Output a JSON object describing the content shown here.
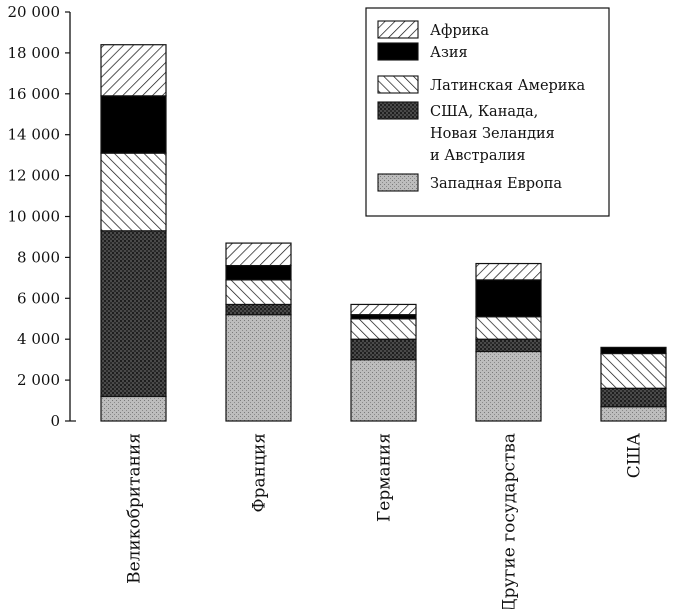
{
  "chart_data": {
    "type": "bar",
    "stacked": true,
    "title": "",
    "xlabel": "",
    "ylabel": "",
    "ylim": [
      0,
      20000
    ],
    "y_ticks": [
      "0",
      "2 000",
      "4 000",
      "6 000",
      "8 000",
      "10 000",
      "12 000",
      "14 000",
      "16 000",
      "18 000",
      "20 000"
    ],
    "y_tick_values": [
      0,
      2000,
      4000,
      6000,
      8000,
      10000,
      12000,
      14000,
      16000,
      18000,
      20000
    ],
    "categories": [
      "Великобритания",
      "Франция",
      "Германия",
      "Другие государства",
      "США"
    ],
    "legend_position": "top-right",
    "grid": false,
    "series": [
      {
        "name": "Западная Европа",
        "fill": "stipple",
        "color": "#a8a8a8",
        "values": [
          1200,
          5200,
          3000,
          3400,
          700
        ]
      },
      {
        "name": "США, Канада, Новая Зеландия и Австралия",
        "fill": "dark-crosshatch",
        "color": "#404040",
        "values": [
          8100,
          500,
          1000,
          600,
          900
        ]
      },
      {
        "name": "Латинская Америка",
        "fill": "back-hatch",
        "color": "#ffffff",
        "values": [
          3800,
          1200,
          1000,
          1100,
          1700
        ]
      },
      {
        "name": "Азия",
        "fill": "solid",
        "color": "#000000",
        "values": [
          2800,
          700,
          200,
          1800,
          300
        ]
      },
      {
        "name": "Африка",
        "fill": "forward-hatch",
        "color": "#ffffff",
        "values": [
          2500,
          1100,
          500,
          800,
          0
        ]
      }
    ],
    "legend": {
      "order": [
        "Африка",
        "Азия",
        "Латинская Америка",
        "США, Канада, Новая Зеландия и Австралия",
        "Западная Европа"
      ],
      "lines": {
        "Африка": [
          "Африка"
        ],
        "Азия": [
          "Азия"
        ],
        "Латинская Америка": [
          "Латинская Америка"
        ],
        "США, Канада, Новая Зеландия и Австралия": [
          "США, Канада,",
          "Новая Зеландия",
          "и Австралия"
        ],
        "Западная Европа": [
          "Западная Европа"
        ]
      }
    }
  }
}
